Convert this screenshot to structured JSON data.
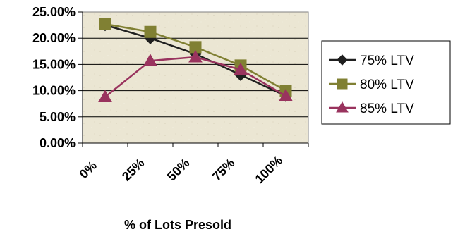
{
  "chart_data": {
    "type": "line",
    "x": [
      "0%",
      "25%",
      "50%",
      "75%",
      "100%"
    ],
    "xlabel": "% of Lots Presold",
    "ylabel": "",
    "y_ticks": [
      "0.00%",
      "5.00%",
      "10.00%",
      "15.00%",
      "20.00%",
      "25.00%"
    ],
    "ylim": [
      0,
      25
    ],
    "grid": "horizontal",
    "legend": "right",
    "plot_background": "#ebe6d3",
    "series": [
      {
        "name": "75% LTV",
        "values": [
          22.5,
          20.0,
          17.0,
          13.0,
          9.0
        ],
        "color": "#1f1f1f",
        "marker": "diamond"
      },
      {
        "name": "80% LTV",
        "values": [
          22.7,
          21.2,
          18.3,
          14.8,
          10.0
        ],
        "color": "#808033",
        "marker": "square"
      },
      {
        "name": "85% LTV",
        "values": [
          8.8,
          15.7,
          16.4,
          14.0,
          9.0
        ],
        "color": "#99335e",
        "marker": "triangle"
      }
    ]
  }
}
